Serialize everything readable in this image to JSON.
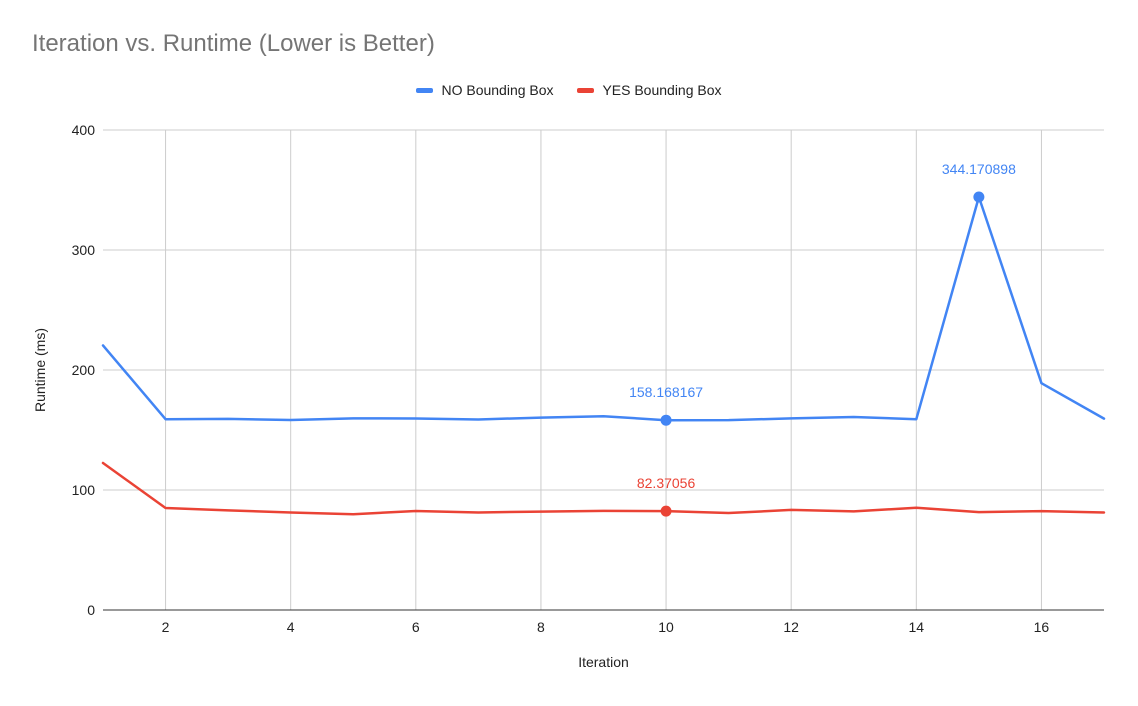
{
  "chart_data": {
    "type": "line",
    "title": "Iteration vs. Runtime (Lower is Better)",
    "xlabel": "Iteration",
    "ylabel": "Runtime (ms)",
    "xlim": [
      1,
      17
    ],
    "ylim": [
      0,
      400
    ],
    "x_ticks": [
      2,
      4,
      6,
      8,
      10,
      12,
      14,
      16
    ],
    "y_ticks": [
      0,
      100,
      200,
      300,
      400
    ],
    "grid": true,
    "legend_position": "top-center",
    "x": [
      1,
      2,
      3,
      4,
      5,
      6,
      7,
      8,
      9,
      10,
      11,
      12,
      13,
      14,
      15,
      16,
      17
    ],
    "series": [
      {
        "name": "NO Bounding Box",
        "color": "#4285f4",
        "values": [
          220.5,
          159,
          159.3,
          158.3,
          159.7,
          159.6,
          158.8,
          160.3,
          161.5,
          158.168167,
          158.2,
          159.7,
          160.8,
          159,
          344.170898,
          189,
          159.5
        ],
        "annotations": [
          {
            "x": 10,
            "y": 158.168167,
            "label": "158.168167"
          },
          {
            "x": 15,
            "y": 344.170898,
            "label": "344.170898"
          }
        ]
      },
      {
        "name": "YES Bounding Box",
        "color": "#ea4335",
        "values": [
          122.5,
          85,
          83,
          81.3,
          79.8,
          82.5,
          81.3,
          82,
          82.6,
          82.37056,
          80.8,
          83.4,
          82.2,
          85.2,
          81.6,
          82.4,
          81.3
        ],
        "annotations": [
          {
            "x": 10,
            "y": 82.37056,
            "label": "82.37056"
          }
        ]
      }
    ]
  }
}
